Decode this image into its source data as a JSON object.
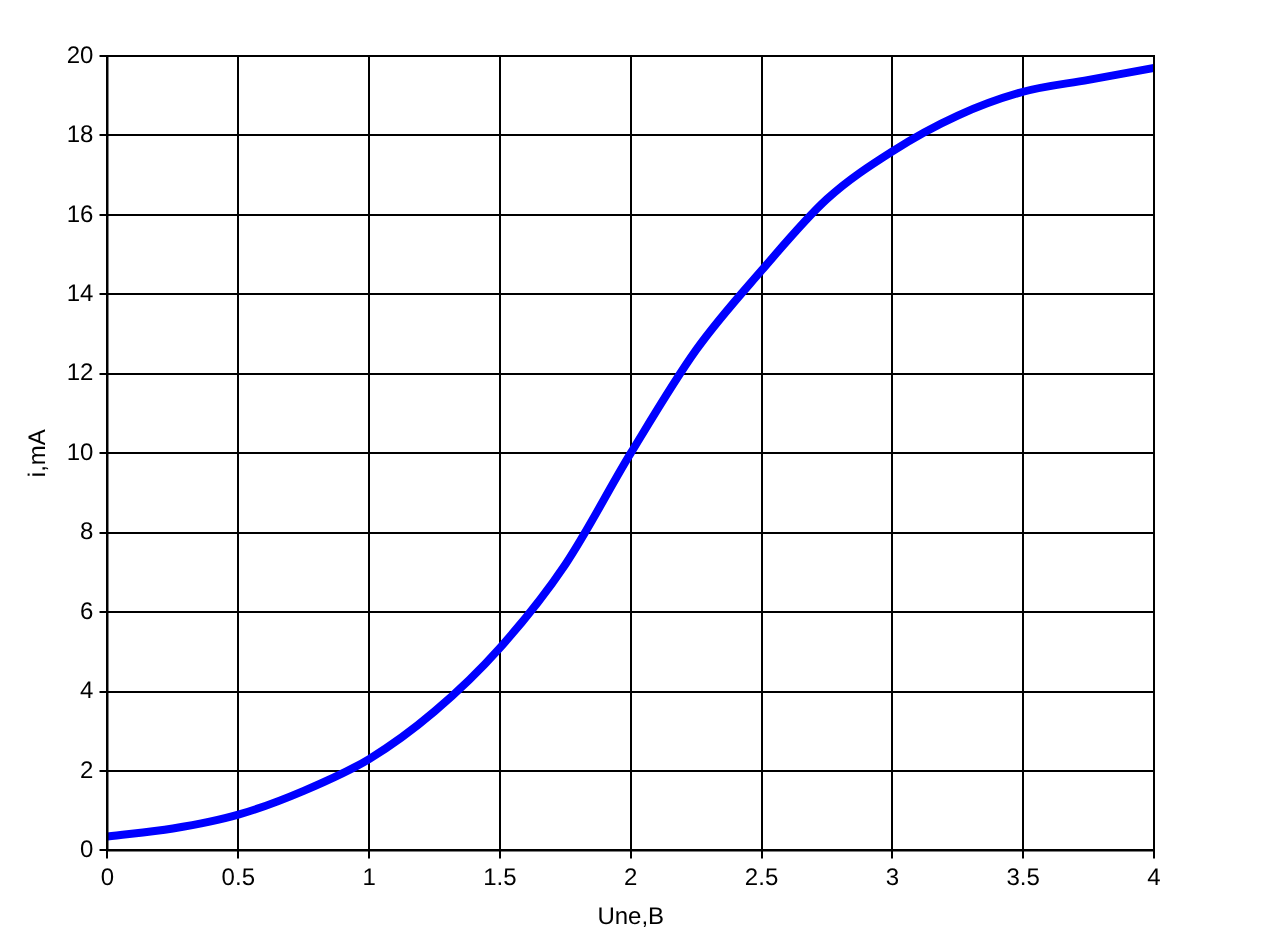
{
  "chart_data": {
    "type": "line",
    "xlabel": "Une,B",
    "ylabel": "i,mA",
    "x": [
      0,
      0.25,
      0.5,
      0.75,
      1,
      1.25,
      1.5,
      1.75,
      2,
      2.25,
      2.5,
      2.75,
      3,
      3.25,
      3.5,
      3.75,
      4
    ],
    "series": [
      {
        "color": "#0000ff",
        "values": [
          0.35,
          0.55,
          0.9,
          1.5,
          2.3,
          3.5,
          5.1,
          7.2,
          10,
          12.6,
          14.6,
          16.4,
          17.6,
          18.5,
          19.1,
          19.4,
          19.7
        ]
      }
    ],
    "xlim": [
      0,
      4
    ],
    "xticks": [
      0,
      0.5,
      1,
      1.5,
      2,
      2.5,
      3,
      3.5,
      4
    ],
    "ylim": [
      0,
      20
    ],
    "yticks": [
      0,
      2,
      4,
      6,
      8,
      10,
      12,
      14,
      16,
      18,
      20
    ],
    "grid": true,
    "legend": false,
    "marker": "none",
    "line_style": "solid"
  }
}
